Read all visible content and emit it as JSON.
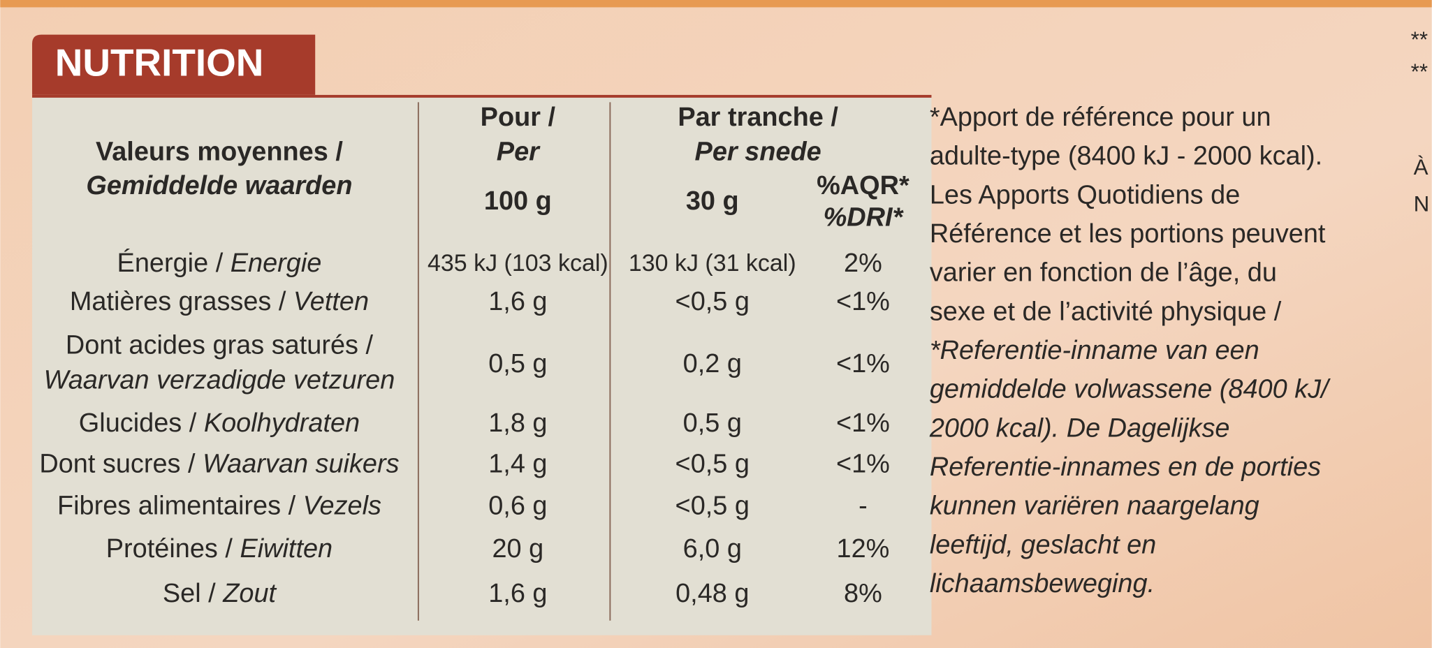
{
  "header": {
    "title": "NUTRITION"
  },
  "table": {
    "header": {
      "label": [
        "Valeurs moyennes /",
        "Gemiddelde waarden"
      ],
      "per100": [
        "Pour /",
        "Per",
        "100 g"
      ],
      "per_portion": [
        "Par tranche /",
        "Per snede",
        "30 g"
      ],
      "ri": [
        "%AQR*",
        "%DRI*"
      ]
    },
    "rows": [
      {
        "fr": "Énergie /",
        "nl": "Energie",
        "per100": "435 kJ (103 kcal)",
        "per_portion": "130 kJ (31 kcal)",
        "ri": "2%"
      },
      {
        "fr": "Matières grasses /",
        "nl": "Vetten",
        "per100": "1,6 g",
        "per_portion": "<0,5 g",
        "ri": "<1%"
      },
      {
        "fr": "Dont acides gras saturés /",
        "nl": "Waarvan verzadigde vetzuren",
        "per100": "0,5 g",
        "per_portion": "0,2 g",
        "ri": "<1%"
      },
      {
        "fr": "Glucides /",
        "nl": "Koolhydraten",
        "per100": "1,8 g",
        "per_portion": "0,5 g",
        "ri": "<1%"
      },
      {
        "fr": "Dont sucres /",
        "nl": "Waarvan suikers",
        "per100": "1,4 g",
        "per_portion": "<0,5 g",
        "ri": "<1%"
      },
      {
        "fr": "Fibres alimentaires /",
        "nl": "Vezels",
        "per100": "0,6 g",
        "per_portion": "<0,5 g",
        "ri": "-"
      },
      {
        "fr": "Protéines /",
        "nl": "Eiwitten",
        "per100": "20 g",
        "per_portion": "6,0 g",
        "ri": "12%"
      },
      {
        "fr": "Sel /",
        "nl": "Zout",
        "per100": "1,6 g",
        "per_portion": "0,48 g",
        "ri": "8%"
      }
    ]
  },
  "notes": {
    "fr": [
      "*Apport de référence pour un",
      "adulte-type (8400 kJ - 2000 kcal).",
      "Les Apports Quotidiens de",
      "Référence et les portions peuvent",
      "varier en fonction de l’âge, du",
      "sexe et de l’activité physique /"
    ],
    "nl": [
      "*Referentie-inname van een",
      "gemiddelde volwassene (8400 kJ/",
      "2000 kcal). De Dagelijkse",
      "Referentie-innames en de porties",
      "kunnen variëren naargelang",
      "leeftijd, geslacht en",
      "lichaamsbeweging."
    ]
  },
  "edge_fragments": [
    "**",
    "**",
    "À",
    "N"
  ]
}
